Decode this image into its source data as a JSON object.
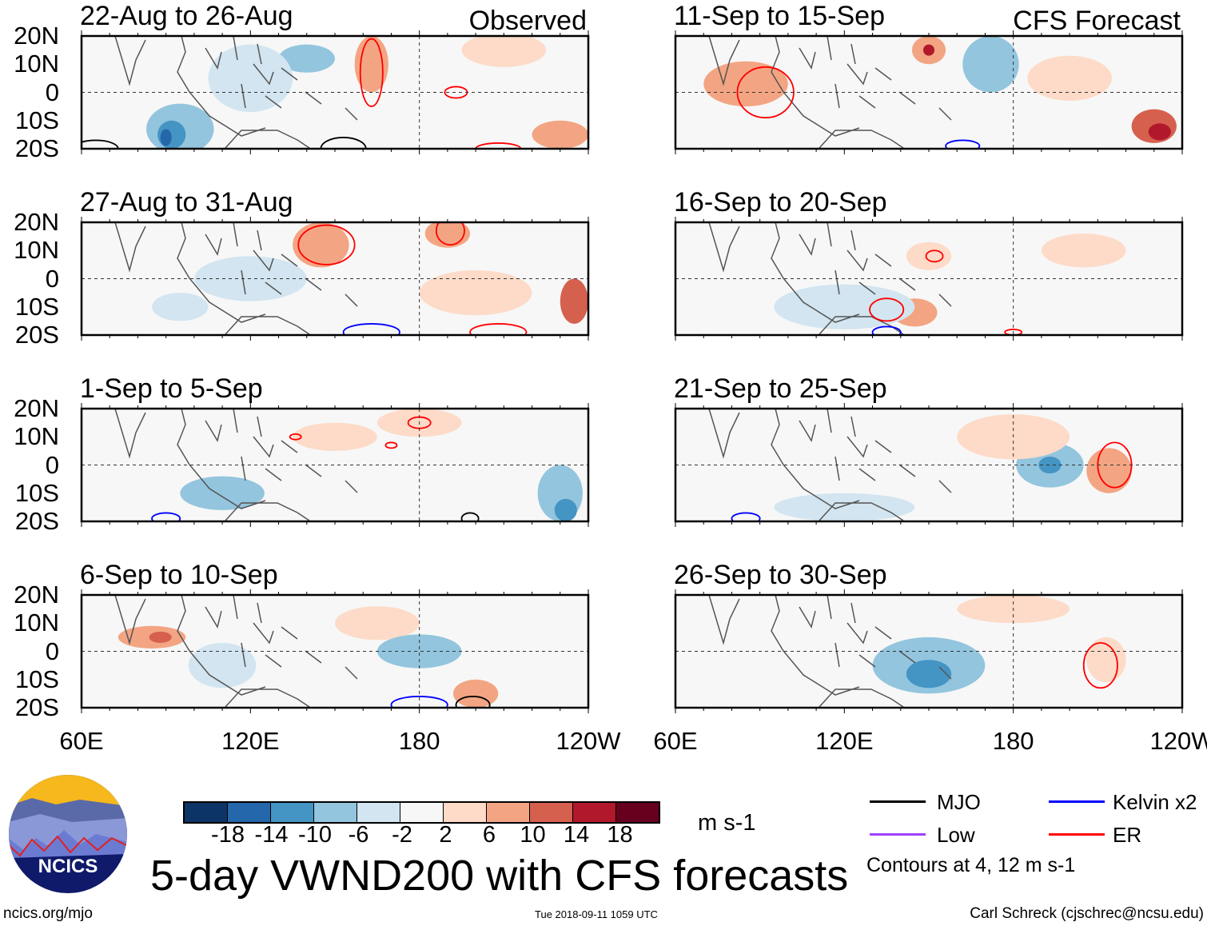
{
  "chart_data": {
    "type": "heatmap",
    "title": "5-day VWND200 with CFS forecasts",
    "variable": "VWND200",
    "units": "m s-1",
    "panels": [
      {
        "title": "22-Aug to 26-Aug",
        "label": "Observed",
        "column": "left"
      },
      {
        "title": "27-Aug to 31-Aug",
        "label": "",
        "column": "left"
      },
      {
        "title": "1-Sep to 5-Sep",
        "label": "",
        "column": "left"
      },
      {
        "title": "6-Sep to 10-Sep",
        "label": "",
        "column": "left"
      },
      {
        "title": "11-Sep to 15-Sep",
        "label": "CFS Forecast",
        "column": "right"
      },
      {
        "title": "16-Sep to 20-Sep",
        "label": "",
        "column": "right"
      },
      {
        "title": "21-Sep to 25-Sep",
        "label": "",
        "column": "right"
      },
      {
        "title": "26-Sep to 30-Sep",
        "label": "",
        "column": "right"
      }
    ],
    "y_ticks": [
      "20N",
      "10N",
      "0",
      "10S",
      "20S"
    ],
    "x_ticks": [
      "60E",
      "120E",
      "180",
      "120W"
    ],
    "xlim": [
      60,
      240
    ],
    "ylim": [
      -20,
      20
    ],
    "colorbar": {
      "levels": [
        "-18",
        "-14",
        "-10",
        "-6",
        "-2",
        "2",
        "6",
        "10",
        "14",
        "18"
      ],
      "colors": [
        "#0c3466",
        "#2467ab",
        "#4494c4",
        "#93c5de",
        "#d2e5f0",
        "#f7f7f7",
        "#fddbc8",
        "#f3a583",
        "#d6604e",
        "#b2182c",
        "#67001f"
      ],
      "units": "m s-1"
    },
    "legend": {
      "items": [
        {
          "label": "MJO",
          "color": "#000000"
        },
        {
          "label": "Kelvin x2",
          "color": "#0000ff"
        },
        {
          "label": "Low",
          "color": "#a040ff"
        },
        {
          "label": "ER",
          "color": "#ff0000"
        }
      ],
      "note": "Contours at 4, 12 m s-1"
    }
  },
  "footer": {
    "site": "ncics.org/mjo",
    "timestamp": "Tue 2018-09-11 1059 UTC",
    "author": "Carl Schreck (cjschrec@ncsu.edu)",
    "logo_text": "NCICS"
  }
}
